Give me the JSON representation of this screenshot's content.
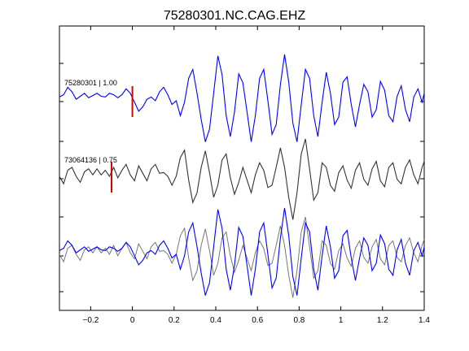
{
  "chart_data": {
    "type": "line",
    "title": "75280301.NC.CAG.EHZ",
    "xlabel": "",
    "ylabel": "",
    "xlim": [
      -0.35,
      1.4
    ],
    "x_ticks": [
      -0.2,
      0,
      0.2,
      0.4,
      0.6,
      0.8,
      1.0,
      1.2,
      1.4
    ],
    "x_tick_labels": [
      "−0.2",
      "0",
      "0.2",
      "0.4",
      "0.6",
      "0.8",
      "1",
      "1.2",
      "1.4"
    ],
    "grid": false,
    "colors": {
      "trace_1": "#0000ff",
      "trace_2": "#333333",
      "marker": "#dd0000",
      "axes": "#000000"
    },
    "traces": [
      {
        "label": "75280301 | 1.00",
        "color": "#0000ff",
        "pick_time": 0.0,
        "time": [
          -0.35,
          -0.33,
          -0.31,
          -0.29,
          -0.27,
          -0.25,
          -0.23,
          -0.21,
          -0.19,
          -0.17,
          -0.15,
          -0.13,
          -0.11,
          -0.09,
          -0.07,
          -0.05,
          -0.03,
          -0.01,
          0.01,
          0.03,
          0.05,
          0.07,
          0.09,
          0.11,
          0.13,
          0.15,
          0.17,
          0.19,
          0.21,
          0.23,
          0.25,
          0.27,
          0.29,
          0.31,
          0.33,
          0.35,
          0.37,
          0.39,
          0.41,
          0.43,
          0.45,
          0.47,
          0.49,
          0.51,
          0.53,
          0.55,
          0.57,
          0.59,
          0.61,
          0.63,
          0.65,
          0.67,
          0.69,
          0.71,
          0.73,
          0.75,
          0.77,
          0.79,
          0.81,
          0.83,
          0.85,
          0.87,
          0.89,
          0.91,
          0.93,
          0.95,
          0.97,
          0.99,
          1.01,
          1.03,
          1.05,
          1.07,
          1.09,
          1.11,
          1.13,
          1.15,
          1.17,
          1.19,
          1.21,
          1.23,
          1.25,
          1.27,
          1.29,
          1.31,
          1.33,
          1.35,
          1.37,
          1.39,
          1.4
        ],
        "amplitude": [
          0.05,
          0.08,
          0.18,
          0.12,
          0.02,
          0.06,
          0.1,
          0.04,
          0.07,
          0.1,
          0.06,
          0.05,
          0.1,
          0.08,
          0.04,
          0.08,
          0.16,
          0.1,
          -0.02,
          -0.14,
          -0.08,
          0.02,
          0.05,
          0.0,
          0.12,
          0.18,
          0.08,
          -0.05,
          0.0,
          -0.2,
          -0.02,
          0.3,
          0.42,
          0.1,
          -0.25,
          -0.55,
          -0.38,
          0.1,
          0.6,
          0.35,
          -0.2,
          -0.48,
          -0.15,
          0.36,
          0.24,
          -0.15,
          -0.55,
          -0.2,
          0.3,
          0.42,
          0.0,
          -0.45,
          -0.32,
          0.22,
          0.62,
          0.25,
          -0.3,
          -0.55,
          -0.05,
          0.42,
          0.3,
          -0.2,
          -0.48,
          -0.02,
          0.38,
          0.1,
          -0.32,
          -0.22,
          0.25,
          0.32,
          -0.05,
          -0.35,
          -0.05,
          0.22,
          0.12,
          -0.22,
          -0.12,
          0.26,
          0.14,
          -0.2,
          -0.28,
          0.06,
          0.2,
          -0.12,
          -0.28,
          0.05,
          0.16,
          -0.02,
          0.1
        ]
      },
      {
        "label": "73064136 | 0.75",
        "color": "#333333",
        "pick_time": -0.1,
        "time": [
          -0.35,
          -0.33,
          -0.31,
          -0.29,
          -0.27,
          -0.25,
          -0.23,
          -0.21,
          -0.19,
          -0.17,
          -0.15,
          -0.13,
          -0.11,
          -0.09,
          -0.07,
          -0.05,
          -0.03,
          -0.01,
          0.01,
          0.03,
          0.05,
          0.07,
          0.09,
          0.11,
          0.13,
          0.15,
          0.17,
          0.19,
          0.21,
          0.23,
          0.25,
          0.27,
          0.29,
          0.31,
          0.33,
          0.35,
          0.37,
          0.39,
          0.41,
          0.43,
          0.45,
          0.47,
          0.49,
          0.51,
          0.53,
          0.55,
          0.57,
          0.59,
          0.61,
          0.63,
          0.65,
          0.67,
          0.69,
          0.71,
          0.73,
          0.75,
          0.77,
          0.79,
          0.81,
          0.83,
          0.85,
          0.87,
          0.89,
          0.91,
          0.93,
          0.95,
          0.97,
          0.99,
          1.01,
          1.03,
          1.05,
          1.07,
          1.09,
          1.11,
          1.13,
          1.15,
          1.17,
          1.19,
          1.21,
          1.23,
          1.25,
          1.27,
          1.29,
          1.31,
          1.33,
          1.35,
          1.37,
          1.39,
          1.4
        ],
        "amplitude": [
          0.0,
          -0.1,
          0.08,
          0.12,
          0.0,
          -0.08,
          0.06,
          0.1,
          0.02,
          0.1,
          0.02,
          0.08,
          0.0,
          0.12,
          -0.02,
          0.08,
          0.16,
          0.02,
          -0.06,
          0.14,
          0.04,
          -0.06,
          0.1,
          0.16,
          0.04,
          0.05,
          0.0,
          -0.12,
          0.0,
          0.25,
          0.35,
          -0.05,
          -0.35,
          -0.22,
          0.12,
          0.34,
          0.05,
          -0.28,
          -0.12,
          0.22,
          0.3,
          -0.02,
          -0.24,
          -0.08,
          0.12,
          -0.05,
          -0.22,
          0.02,
          0.18,
          0.08,
          -0.15,
          -0.12,
          0.12,
          0.38,
          0.12,
          -0.28,
          -0.58,
          -0.22,
          0.3,
          0.5,
          0.1,
          -0.32,
          -0.22,
          0.18,
          0.12,
          -0.12,
          -0.2,
          0.05,
          0.14,
          -0.05,
          -0.16,
          0.08,
          0.18,
          -0.04,
          -0.12,
          0.1,
          0.2,
          -0.06,
          -0.14,
          0.12,
          0.18,
          -0.04,
          -0.1,
          0.12,
          0.22,
          0.02,
          -0.1,
          0.12,
          0.2
        ]
      }
    ]
  }
}
